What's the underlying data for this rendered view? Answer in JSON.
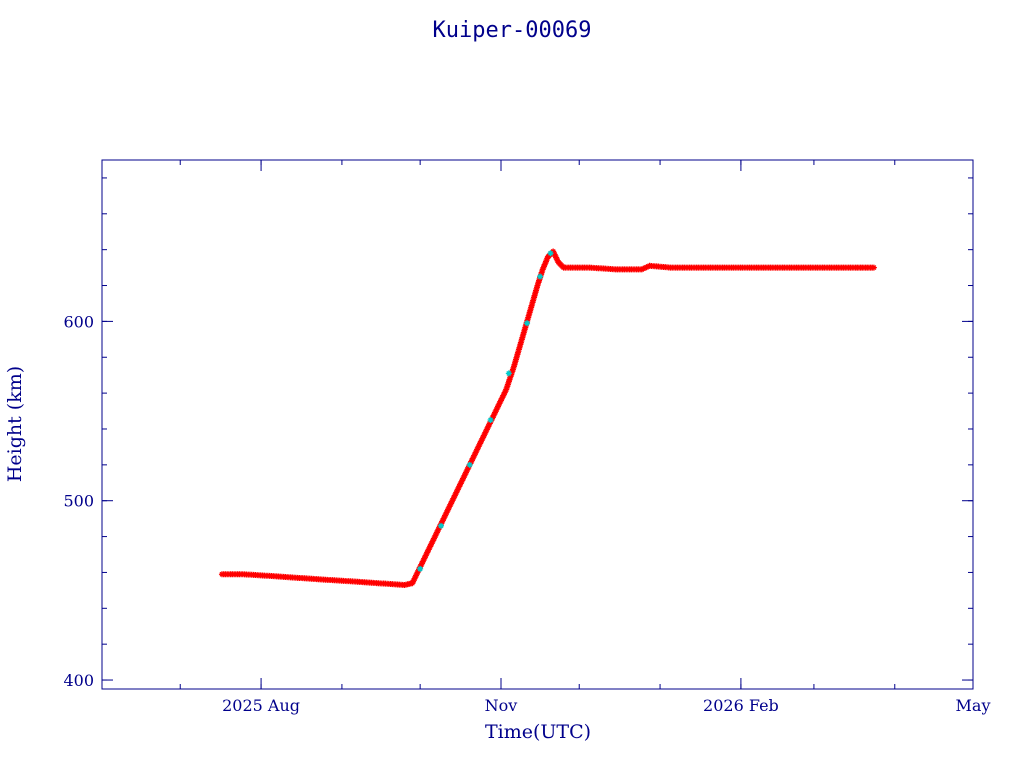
{
  "chart_data": {
    "type": "scatter",
    "title": "Kuiper-00069",
    "xlabel": "Time(UTC)",
    "ylabel": "Height (km)",
    "xlim": [
      "2025-06-01",
      "2026-05-01"
    ],
    "ylim": [
      395,
      690
    ],
    "x_ticks": [
      {
        "date": "2025-08-01",
        "label": "2025 Aug"
      },
      {
        "date": "2025-11-01",
        "label": "Nov"
      },
      {
        "date": "2026-02-01",
        "label": "2026 Feb"
      },
      {
        "date": "2026-05-01",
        "label": "May"
      }
    ],
    "y_ticks": [
      400,
      500,
      600
    ],
    "colors": {
      "axis": "#00008b",
      "primary": "#ff0000",
      "secondary": "#00cccc"
    },
    "series": [
      {
        "color": "#ff0000",
        "marker": "*",
        "points": [
          [
            "2025-07-17",
            459
          ],
          [
            "2025-07-25",
            459
          ],
          [
            "2025-08-05",
            458
          ],
          [
            "2025-08-15",
            457
          ],
          [
            "2025-08-25",
            456
          ],
          [
            "2025-09-05",
            455
          ],
          [
            "2025-09-15",
            454
          ],
          [
            "2025-09-25",
            453
          ],
          [
            "2025-09-28",
            454
          ],
          [
            "2025-10-02",
            466
          ],
          [
            "2025-10-06",
            478
          ],
          [
            "2025-10-10",
            490
          ],
          [
            "2025-10-14",
            502
          ],
          [
            "2025-10-18",
            514
          ],
          [
            "2025-10-22",
            526
          ],
          [
            "2025-10-26",
            538
          ],
          [
            "2025-10-30",
            550
          ],
          [
            "2025-11-03",
            562
          ],
          [
            "2025-11-06",
            575
          ],
          [
            "2025-11-09",
            590
          ],
          [
            "2025-11-12",
            605
          ],
          [
            "2025-11-15",
            620
          ],
          [
            "2025-11-17",
            629
          ],
          [
            "2025-11-19",
            636
          ],
          [
            "2025-11-21",
            639
          ],
          [
            "2025-11-23",
            633
          ],
          [
            "2025-11-25",
            630
          ],
          [
            "2025-12-05",
            630
          ],
          [
            "2025-12-15",
            629
          ],
          [
            "2025-12-25",
            629
          ],
          [
            "2025-12-28",
            631
          ],
          [
            "2026-01-05",
            630
          ],
          [
            "2026-01-15",
            630
          ],
          [
            "2026-01-25",
            630
          ],
          [
            "2026-02-05",
            630
          ],
          [
            "2026-02-15",
            630
          ],
          [
            "2026-02-25",
            630
          ],
          [
            "2026-03-07",
            630
          ],
          [
            "2026-03-17",
            630
          ],
          [
            "2026-03-24",
            630
          ]
        ]
      },
      {
        "color": "#00cccc",
        "marker": "*",
        "points": [
          [
            "2025-10-01",
            462
          ],
          [
            "2025-10-09",
            486
          ],
          [
            "2025-10-20",
            520
          ],
          [
            "2025-10-28",
            545
          ],
          [
            "2025-11-04",
            571
          ],
          [
            "2025-11-11",
            599
          ],
          [
            "2025-11-16",
            625
          ],
          [
            "2025-11-20",
            638
          ]
        ]
      }
    ]
  }
}
